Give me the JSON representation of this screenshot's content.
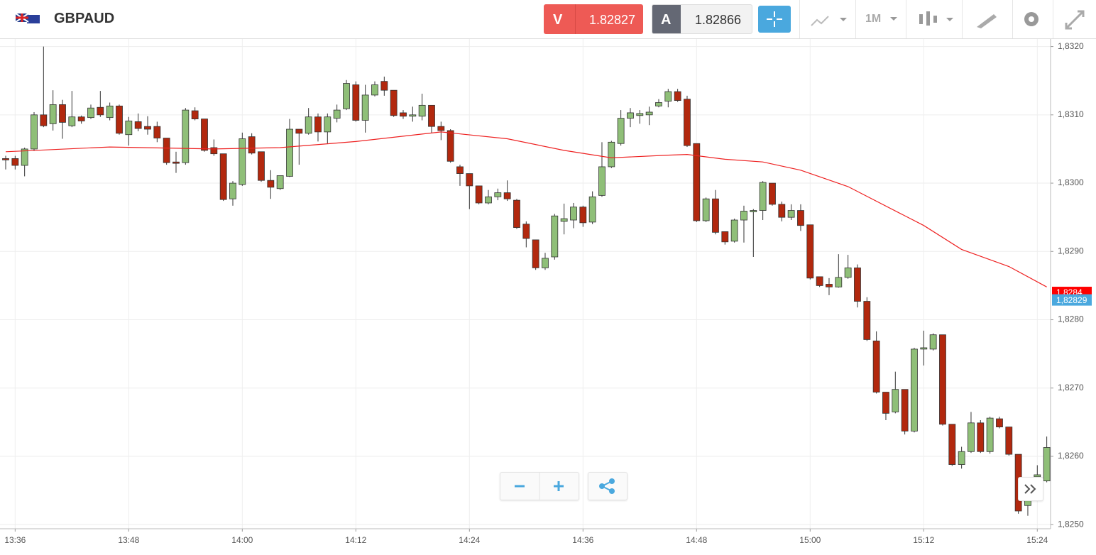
{
  "header": {
    "symbol": "GBPAUD",
    "sell_label": "V",
    "sell_price": "1.82827",
    "buy_label": "A",
    "buy_price": "1.82866",
    "timeframe": "1M"
  },
  "chart_data": {
    "type": "candlestick",
    "x": [
      "13:35",
      "13:36",
      "13:37",
      "13:38",
      "13:39",
      "13:40",
      "13:41",
      "13:42",
      "13:43",
      "13:44",
      "13:45",
      "13:46",
      "13:47",
      "13:48",
      "13:49",
      "13:50",
      "13:51",
      "13:52",
      "13:53",
      "13:54",
      "13:55",
      "13:56",
      "13:57",
      "13:58",
      "13:59",
      "14:00",
      "14:01",
      "14:02",
      "14:03",
      "14:04",
      "14:05",
      "14:06",
      "14:07",
      "14:08",
      "14:09",
      "14:10",
      "14:11",
      "14:12",
      "14:13",
      "14:14",
      "14:15",
      "14:16",
      "14:17",
      "14:18",
      "14:19",
      "14:20",
      "14:21",
      "14:22",
      "14:23",
      "14:24",
      "14:25",
      "14:26",
      "14:27",
      "14:28",
      "14:29",
      "14:30",
      "14:31",
      "14:32",
      "14:33",
      "14:34",
      "14:35",
      "14:36",
      "14:37",
      "14:38",
      "14:39",
      "14:40",
      "14:41",
      "14:42",
      "14:43",
      "14:44",
      "14:45",
      "14:46",
      "14:47",
      "14:48",
      "14:49",
      "14:50",
      "14:51",
      "14:52",
      "14:53",
      "14:54",
      "14:55",
      "14:56",
      "14:57",
      "14:58",
      "14:59",
      "15:00",
      "15:01",
      "15:02",
      "15:03",
      "15:04",
      "15:05",
      "15:06",
      "15:07",
      "15:08",
      "15:09",
      "15:10",
      "15:11",
      "15:12",
      "15:13",
      "15:14",
      "15:15",
      "15:16",
      "15:17",
      "15:18",
      "15:19",
      "15:20",
      "15:21",
      "15:22",
      "15:23",
      "15:24",
      "15:25"
    ],
    "open": [
      1.83036,
      1.83036,
      1.83026,
      1.8305,
      1.831,
      1.83087,
      1.83115,
      1.83084,
      1.83097,
      1.83096,
      1.83111,
      1.83096,
      1.83113,
      1.83071,
      1.8309,
      1.83083,
      1.83083,
      1.83066,
      1.83031,
      1.8303,
      1.83106,
      1.83094,
      1.83052,
      1.83043,
      1.82977,
      1.82998,
      1.83068,
      1.83046,
      1.83004,
      1.82992,
      1.8301,
      1.83079,
      1.83073,
      1.83097,
      1.83075,
      1.83095,
      1.83109,
      1.83144,
      1.83092,
      1.83129,
      1.83149,
      1.83136,
      1.83103,
      1.83098,
      1.83098,
      1.83114,
      1.83083,
      1.83077,
      1.83024,
      1.83014,
      1.82996,
      1.82971,
      1.8298,
      1.82986,
      1.82975,
      1.8294,
      1.82917,
      1.82876,
      1.82892,
      1.82944,
      1.82946,
      1.82965,
      1.82943,
      1.82982,
      1.83024,
      1.83058,
      1.83095,
      1.83099,
      1.831,
      1.83113,
      1.8312,
      1.83134,
      1.83123,
      1.83058,
      1.82945,
      1.82977,
      1.82929,
      1.82915,
      1.82946,
      1.82958,
      1.8296,
      1.83,
      1.82969,
      1.8295,
      1.8296,
      1.82939,
      1.82863,
      1.82852,
      1.82848,
      1.82862,
      1.82876,
      1.82827,
      1.82769,
      1.82694,
      1.82665,
      1.82698,
      1.82637,
      1.82757,
      1.82757,
      1.82778,
      1.82647,
      1.82588,
      1.82607,
      1.82649,
      1.82607,
      1.82655,
      1.82643,
      1.82603,
      1.82528,
      1.8257,
      1.82564
    ],
    "high": [
      1.8304,
      1.8304,
      1.83052,
      1.83104,
      1.832,
      1.83136,
      1.83122,
      1.83135,
      1.83099,
      1.83115,
      1.83135,
      1.83118,
      1.83115,
      1.83097,
      1.83102,
      1.83098,
      1.8309,
      1.83066,
      1.83046,
      1.8311,
      1.83111,
      1.83094,
      1.83064,
      1.83043,
      1.83003,
      1.83074,
      1.83073,
      1.83046,
      1.83019,
      1.83011,
      1.83094,
      1.83079,
      1.8311,
      1.83102,
      1.83102,
      1.83115,
      1.83151,
      1.83149,
      1.83144,
      1.83149,
      1.83156,
      1.83136,
      1.83107,
      1.83112,
      1.83131,
      1.83114,
      1.8309,
      1.83079,
      1.83027,
      1.83014,
      1.82996,
      1.8299,
      1.82992,
      1.83004,
      1.82977,
      1.82944,
      1.82917,
      1.82898,
      1.82955,
      1.8297,
      1.82971,
      1.82967,
      1.82988,
      1.8306,
      1.83062,
      1.83107,
      1.8311,
      1.83107,
      1.83112,
      1.83123,
      1.83138,
      1.83138,
      1.83128,
      1.83058,
      1.82979,
      1.8299,
      1.82929,
      1.82948,
      1.82967,
      1.82962,
      1.83003,
      1.83,
      1.82973,
      1.82969,
      1.82969,
      1.82939,
      1.82863,
      1.82861,
      1.82896,
      1.82895,
      1.82881,
      1.82833,
      1.82783,
      1.82694,
      1.82724,
      1.82698,
      1.82759,
      1.82784,
      1.8278,
      1.82778,
      1.82647,
      1.82614,
      1.82665,
      1.82653,
      1.82658,
      1.82658,
      1.82643,
      1.82603,
      1.82543,
      1.82587,
      1.82629
    ],
    "low": [
      1.8302,
      1.8302,
      1.8301,
      1.83047,
      1.83082,
      1.83077,
      1.83065,
      1.83082,
      1.83087,
      1.83094,
      1.83097,
      1.83092,
      1.83071,
      1.83055,
      1.83076,
      1.83071,
      1.8306,
      1.83027,
      1.83015,
      1.83027,
      1.83092,
      1.83046,
      1.8304,
      1.82974,
      1.82967,
      1.82996,
      1.83042,
      1.83002,
      1.82977,
      1.8299,
      1.83009,
      1.83027,
      1.83071,
      1.83061,
      1.83058,
      1.83089,
      1.83107,
      1.8309,
      1.83074,
      1.83127,
      1.83128,
      1.83097,
      1.83094,
      1.8309,
      1.83092,
      1.83073,
      1.83063,
      1.8303,
      1.82996,
      1.82962,
      1.82969,
      1.82969,
      1.82975,
      1.82974,
      1.82933,
      1.82906,
      1.82873,
      1.82873,
      1.82888,
      1.82925,
      1.82934,
      1.82936,
      1.8294,
      1.8298,
      1.83022,
      1.83055,
      1.83082,
      1.83087,
      1.83085,
      1.83111,
      1.83111,
      1.83119,
      1.83053,
      1.82943,
      1.82943,
      1.82925,
      1.8291,
      1.82913,
      1.82913,
      1.82892,
      1.82946,
      1.82967,
      1.82944,
      1.82946,
      1.8293,
      1.82859,
      1.82848,
      1.82836,
      1.82847,
      1.8286,
      1.82818,
      1.82769,
      1.82692,
      1.82653,
      1.82663,
      1.82632,
      1.82635,
      1.82733,
      1.82755,
      1.82645,
      1.82586,
      1.82582,
      1.82605,
      1.82605,
      1.82604,
      1.82641,
      1.82601,
      1.82516,
      1.82513,
      1.82546,
      1.82562
    ],
    "close": [
      1.83034,
      1.83026,
      1.8305,
      1.831,
      1.83084,
      1.83115,
      1.83089,
      1.83097,
      1.83091,
      1.8311,
      1.831,
      1.83113,
      1.83073,
      1.83091,
      1.8308,
      1.83079,
      1.83066,
      1.8303,
      1.83029,
      1.83107,
      1.83094,
      1.83048,
      1.83043,
      1.82976,
      1.83,
      1.83065,
      1.83044,
      1.83004,
      1.82994,
      1.83011,
      1.83079,
      1.83073,
      1.83097,
      1.83075,
      1.83097,
      1.83107,
      1.83146,
      1.83092,
      1.83129,
      1.83144,
      1.83136,
      1.83099,
      1.83098,
      1.831,
      1.83114,
      1.83083,
      1.83077,
      1.83032,
      1.83014,
      1.82996,
      1.82971,
      1.8298,
      1.82986,
      1.82977,
      1.82935,
      1.82919,
      1.82876,
      1.8289,
      1.82952,
      1.82948,
      1.82965,
      1.82942,
      1.8298,
      1.83024,
      1.8306,
      1.83095,
      1.83103,
      1.83102,
      1.83104,
      1.83118,
      1.83134,
      1.83121,
      1.83055,
      1.82945,
      1.82977,
      1.82928,
      1.82914,
      1.82946,
      1.82959,
      1.8296,
      1.83001,
      1.82969,
      1.8295,
      1.8296,
      1.82938,
      1.82861,
      1.8285,
      1.82848,
      1.82862,
      1.82876,
      1.82827,
      1.82771,
      1.82694,
      1.82663,
      1.82698,
      1.82637,
      1.82757,
      1.82759,
      1.82778,
      1.82647,
      1.82588,
      1.82607,
      1.82649,
      1.82607,
      1.82656,
      1.82643,
      1.82603,
      1.8252,
      1.82541,
      1.82573,
      1.82613
    ],
    "up_color": "#8fbf78",
    "down_color": "#b2280e",
    "ma": {
      "color": "#ee2222",
      "x": [
        "13:35",
        "13:46",
        "13:57",
        "14:04",
        "14:12",
        "14:21",
        "14:28",
        "14:34",
        "14:39",
        "14:45",
        "14:47",
        "14:51",
        "14:55",
        "14:59",
        "15:04",
        "15:12",
        "15:16",
        "15:21",
        "15:25"
      ],
      "values": [
        1.83046,
        1.83053,
        1.8305,
        1.83052,
        1.83061,
        1.83075,
        1.83065,
        1.83048,
        1.83037,
        1.83041,
        1.83042,
        1.83035,
        1.83031,
        1.83019,
        1.82995,
        1.82938,
        1.82903,
        1.82878,
        1.82848
      ]
    },
    "ylim": [
      1.82494,
      1.83211
    ],
    "yticks": [
      {
        "value": 1.825,
        "label": "1,8250"
      },
      {
        "value": 1.826,
        "label": "1,8260"
      },
      {
        "value": 1.827,
        "label": "1,8270"
      },
      {
        "value": 1.828,
        "label": "1,8280"
      },
      {
        "value": 1.829,
        "label": "1,8290"
      },
      {
        "value": 1.83,
        "label": "1,8300"
      },
      {
        "value": 1.831,
        "label": "1,8310"
      },
      {
        "value": 1.832,
        "label": "1,8320"
      }
    ],
    "xticks": [
      "13:36",
      "13:48",
      "14:00",
      "14:12",
      "14:24",
      "14:36",
      "14:48",
      "15:00",
      "15:12",
      "15:24"
    ],
    "grid": true,
    "price_tags": [
      {
        "value": 1.8284,
        "label": "1,8284",
        "color": "#ff0000"
      },
      {
        "value": 1.82829,
        "label": "1,82829",
        "color": "#4aa8de"
      }
    ]
  }
}
